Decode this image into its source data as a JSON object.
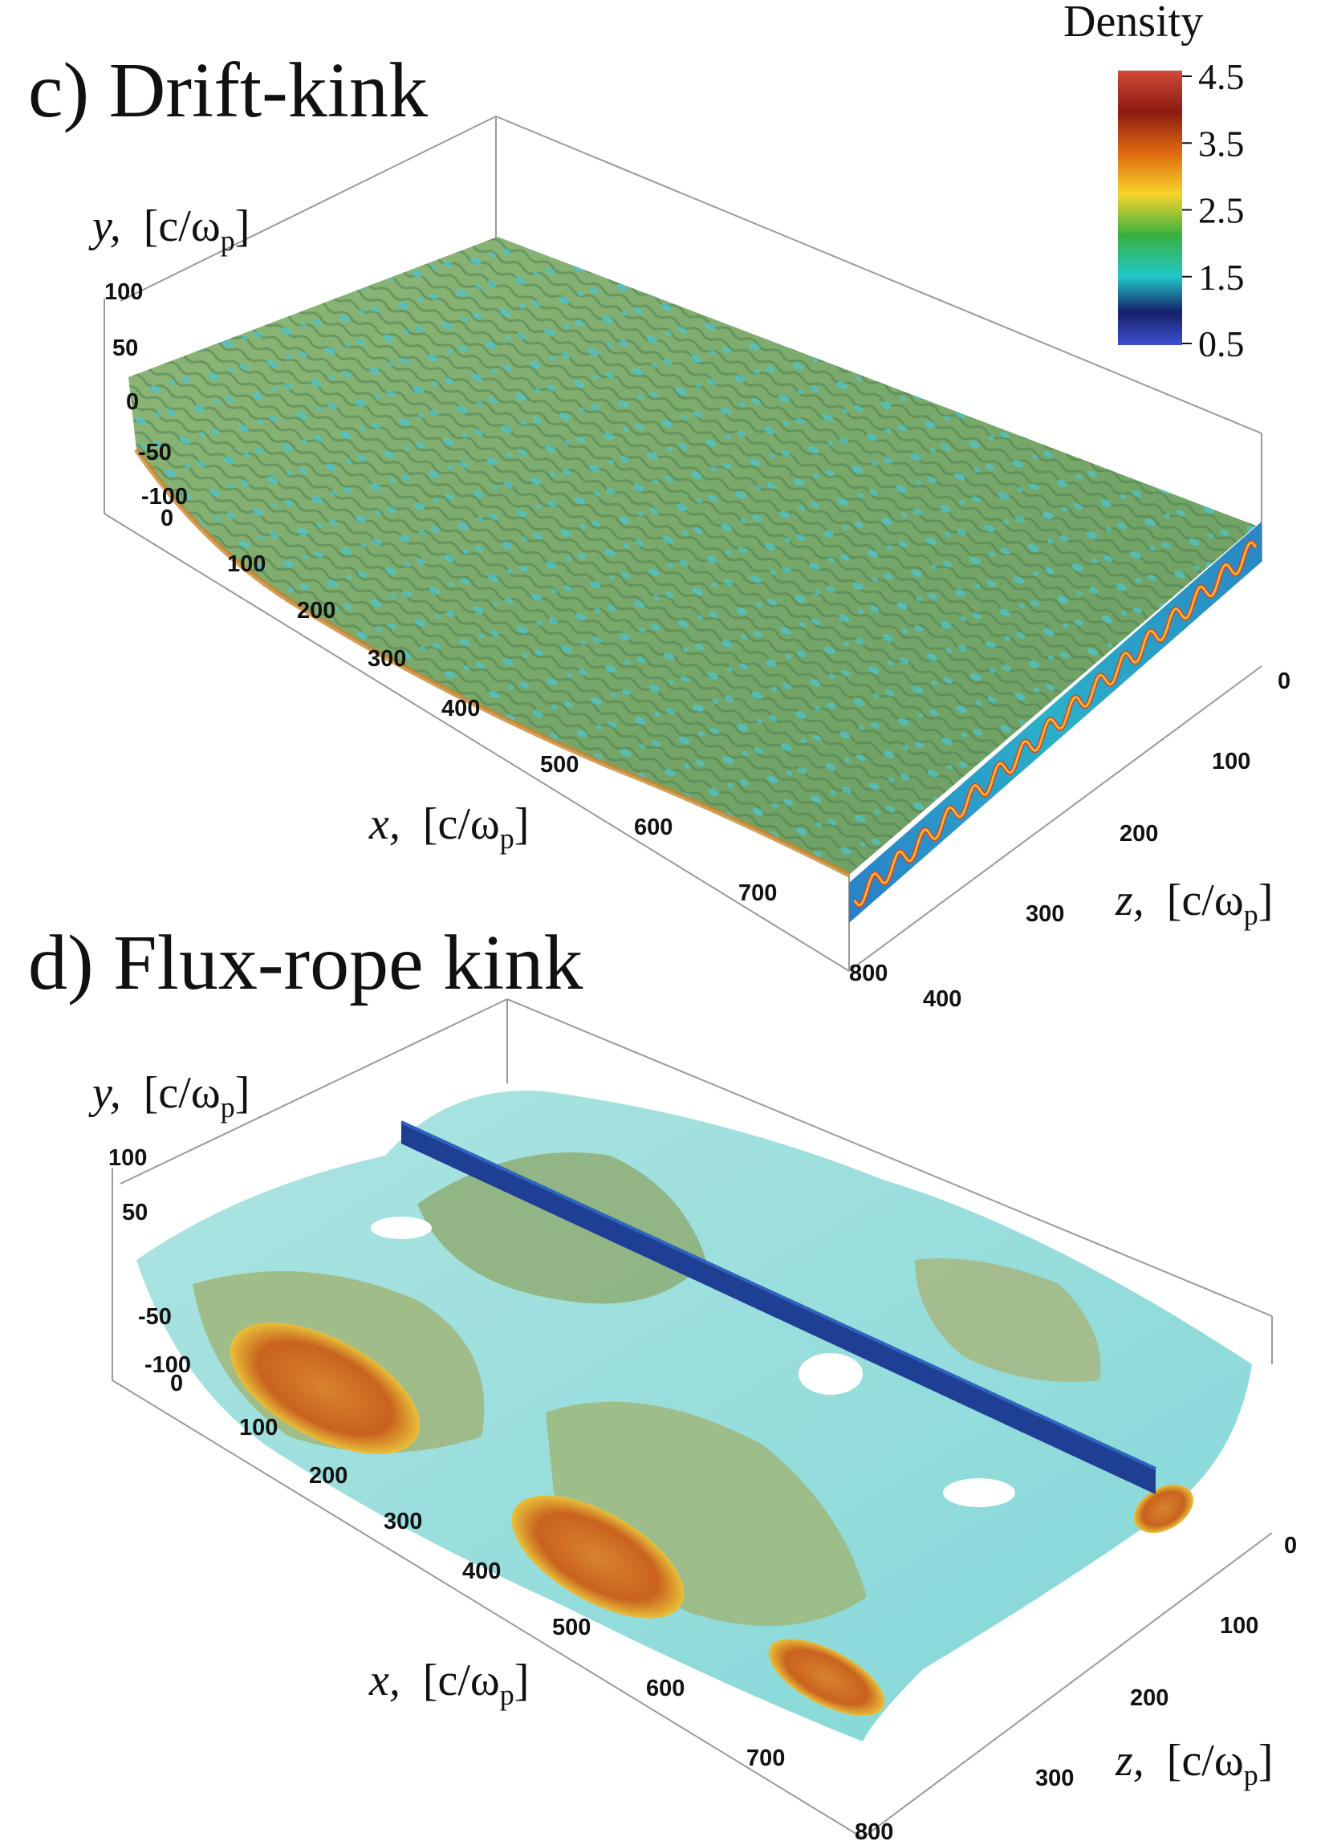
{
  "colorbar": {
    "title": "Density",
    "ticks": [
      "4.5",
      "3.5",
      "2.5",
      "1.5",
      "0.5"
    ]
  },
  "panels": [
    {
      "title": "c) Drift-kink",
      "y_axis": {
        "var": "y,",
        "unit_open": "[c/ω",
        "sub": "p",
        "unit_close": "]",
        "ticks": [
          "100",
          "50",
          "0",
          "-50",
          "-100"
        ]
      },
      "x_axis": {
        "var": "x,",
        "unit_open": "[c/ω",
        "sub": "p",
        "unit_close": "]",
        "ticks": [
          "0",
          "100",
          "200",
          "300",
          "400",
          "500",
          "600",
          "700",
          "800"
        ]
      },
      "z_axis": {
        "var": "z,",
        "unit_open": "[c/ω",
        "sub": "p",
        "unit_close": "]",
        "ticks": [
          "0",
          "100",
          "200",
          "300",
          "400"
        ]
      }
    },
    {
      "title": "d) Flux-rope kink",
      "y_axis": {
        "var": "y,",
        "unit_open": "[c/ω",
        "sub": "p",
        "unit_close": "]",
        "ticks": [
          "100",
          "50",
          "-50",
          "-100"
        ]
      },
      "x_axis": {
        "var": "x,",
        "unit_open": "[c/ω",
        "sub": "p",
        "unit_close": "]",
        "ticks": [
          "0",
          "100",
          "200",
          "300",
          "400",
          "500",
          "600",
          "700",
          "800"
        ]
      },
      "z_axis": {
        "var": "z,",
        "unit_open": "[c/ω",
        "sub": "p",
        "unit_close": "]",
        "ticks": [
          "0",
          "100",
          "200",
          "300"
        ]
      }
    }
  ],
  "colors": {
    "surface_green": "#7fae6e",
    "surface_cyan": "#7ad7d6",
    "dense_orange": "#d3702a",
    "slice_blue": "#1b3f8f",
    "colormap": [
      "#d24a3a",
      "#8a1a10",
      "#e06a10",
      "#f7d42a",
      "#38b040",
      "#20c8c8",
      "#16206a",
      "#3c4fd0"
    ]
  }
}
